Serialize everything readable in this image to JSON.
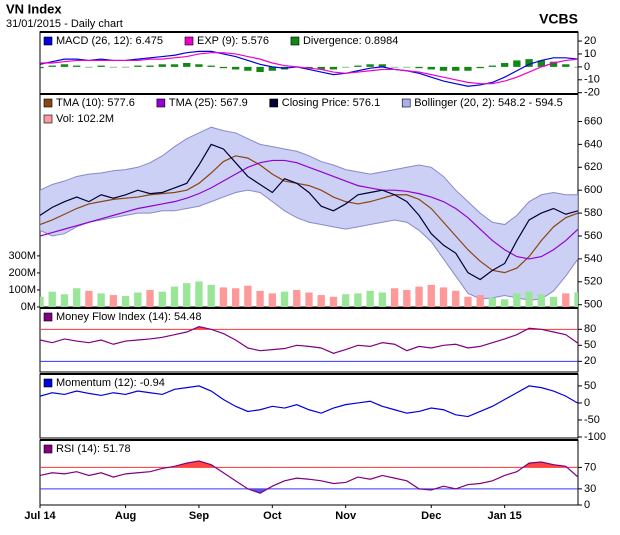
{
  "header": {
    "title": "VN Index",
    "date": "31/01/2015 - Daily chart",
    "brand": "VCBS"
  },
  "chart_data": [
    {
      "type": "line",
      "ylim": [
        -21,
        27
      ],
      "yticks": [
        20,
        10,
        0,
        -10,
        -20
      ],
      "series": [
        {
          "name": "MACD (26, 12): 6.475",
          "type": "line",
          "color": "#0000dd",
          "values": [
            2,
            4,
            6,
            6,
            5,
            6,
            5,
            5,
            6,
            7,
            8,
            9,
            11,
            12,
            12,
            10,
            8,
            5,
            2,
            0,
            -1,
            0,
            -2,
            -4,
            -6,
            -5,
            -3,
            -1,
            0,
            -2,
            -3,
            -5,
            -8,
            -11,
            -13,
            -15,
            -14,
            -12,
            -8,
            -3,
            2,
            5,
            7,
            7,
            6
          ]
        },
        {
          "name": "EXP (9): 5.576",
          "type": "line",
          "color": "#ee00cc",
          "values": [
            3,
            3,
            4,
            5,
            5,
            5,
            5,
            5,
            5,
            6,
            6,
            7,
            8,
            10,
            11,
            11,
            10,
            8,
            6,
            3,
            1,
            0,
            -1,
            -2,
            -4,
            -5,
            -4,
            -3,
            -2,
            -2,
            -3,
            -4,
            -6,
            -8,
            -10,
            -12,
            -13,
            -13,
            -11,
            -8,
            -4,
            0,
            3,
            5,
            6
          ]
        },
        {
          "name": "Divergence: 0.8984",
          "type": "bar",
          "color": "#118811",
          "values": [
            -1,
            1,
            2,
            1,
            0,
            1,
            0,
            0,
            1,
            1,
            2,
            2,
            3,
            2,
            1,
            -1,
            -2,
            -3,
            -4,
            -3,
            -2,
            0,
            -1,
            -2,
            -2,
            0,
            1,
            2,
            2,
            0,
            0,
            -1,
            -2,
            -3,
            -3,
            -3,
            -1,
            1,
            3,
            5,
            6,
            5,
            4,
            2,
            0
          ]
        }
      ]
    },
    {
      "type": "line",
      "ylim": [
        498,
        684
      ],
      "yticks": [
        660,
        640,
        620,
        600,
        580,
        560,
        540,
        520,
        500
      ],
      "y2lim": [
        0,
        1250
      ],
      "y2ticks": [
        {
          "value": 300,
          "label": "300M"
        },
        {
          "value": 200,
          "label": "200M"
        },
        {
          "value": 100,
          "label": "100M"
        },
        {
          "value": 0,
          "label": "0M"
        }
      ],
      "series": [
        {
          "name": "TMA (10): 577.6",
          "type": "line",
          "color": "#8b4513",
          "values": [
            570,
            574,
            579,
            584,
            588,
            590,
            592,
            593,
            594,
            596,
            597,
            598,
            600,
            606,
            615,
            625,
            630,
            628,
            622,
            614,
            608,
            606,
            604,
            600,
            594,
            590,
            588,
            590,
            593,
            596,
            596,
            592,
            584,
            572,
            560,
            548,
            538,
            530,
            528,
            532,
            542,
            556,
            568,
            576,
            580
          ]
        },
        {
          "name": "TMA (25): 567.9",
          "type": "line",
          "color": "#9400d3",
          "values": [
            560,
            563,
            566,
            569,
            572,
            575,
            578,
            581,
            584,
            586,
            588,
            590,
            593,
            597,
            602,
            608,
            614,
            620,
            624,
            626,
            626,
            624,
            620,
            616,
            612,
            608,
            604,
            602,
            600,
            600,
            599,
            597,
            594,
            590,
            584,
            576,
            566,
            556,
            548,
            542,
            540,
            542,
            548,
            556,
            566
          ]
        },
        {
          "name": "Closing Price: 576.1",
          "type": "line",
          "color": "#000033",
          "values": [
            578,
            585,
            590,
            594,
            590,
            596,
            593,
            596,
            600,
            597,
            598,
            602,
            606,
            622,
            640,
            636,
            624,
            612,
            605,
            598,
            610,
            606,
            598,
            586,
            582,
            588,
            596,
            598,
            600,
            596,
            590,
            578,
            562,
            552,
            545,
            528,
            522,
            530,
            536,
            556,
            574,
            580,
            584,
            579,
            582
          ]
        },
        {
          "name": "Bollinger (20, 2): 548.2 - 594.5",
          "type": "band",
          "color": "#aab0ee",
          "upper": [
            600,
            605,
            608,
            612,
            614,
            615,
            617,
            618,
            620,
            624,
            630,
            638,
            645,
            650,
            655,
            652,
            650,
            645,
            640,
            638,
            636,
            634,
            630,
            625,
            622,
            618,
            616,
            614,
            616,
            618,
            620,
            622,
            620,
            612,
            600,
            590,
            580,
            572,
            570,
            578,
            590,
            596,
            598,
            596,
            596
          ],
          "lower": [
            565,
            560,
            562,
            568,
            572,
            574,
            576,
            578,
            580,
            580,
            582,
            582,
            584,
            586,
            590,
            594,
            598,
            600,
            598,
            590,
            582,
            576,
            572,
            570,
            568,
            566,
            568,
            570,
            572,
            574,
            572,
            565,
            555,
            540,
            525,
            510,
            505,
            506,
            508,
            506,
            504,
            505,
            512,
            525,
            540
          ]
        },
        {
          "name": "Vol: 102.2M",
          "type": "bar",
          "axis": "y2",
          "color": "#ff9999",
          "values": [
            60,
            90,
            75,
            110,
            95,
            80,
            70,
            65,
            85,
            100,
            90,
            120,
            140,
            150,
            130,
            115,
            110,
            125,
            95,
            80,
            90,
            100,
            85,
            70,
            60,
            75,
            80,
            95,
            85,
            110,
            100,
            120,
            130,
            115,
            95,
            60,
            70,
            55,
            45,
            80,
            90,
            75,
            60,
            80,
            85
          ],
          "colors": [
            "#99e699",
            "#99e699",
            "#99e699",
            "#99e699",
            "#ff9999",
            "#99e699",
            "#ff9999",
            "#99e699",
            "#99e699",
            "#ff9999",
            "#99e699",
            "#99e699",
            "#99e699",
            "#99e699",
            "#99e699",
            "#ff9999",
            "#ff9999",
            "#ff9999",
            "#ff9999",
            "#ff9999",
            "#99e699",
            "#ff9999",
            "#ff9999",
            "#ff9999",
            "#ff9999",
            "#99e699",
            "#99e699",
            "#99e699",
            "#99e699",
            "#ff9999",
            "#ff9999",
            "#ff9999",
            "#ff9999",
            "#ff9999",
            "#ff9999",
            "#ff9999",
            "#ff9999",
            "#99e699",
            "#99e699",
            "#99e699",
            "#99e699",
            "#99e699",
            "#99e699",
            "#ff9999",
            "#99e699"
          ]
        }
      ]
    },
    {
      "type": "line",
      "ylim": [
        0,
        120
      ],
      "yticks": [
        80,
        50,
        20
      ],
      "grid_colors": [
        "#ff3333",
        null,
        "#3333ff"
      ],
      "fill_above_color": "#ff4444",
      "series": [
        {
          "name": "Money Flow Index (14): 54.48",
          "type": "line",
          "color": "#800080",
          "values": [
            60,
            55,
            62,
            58,
            55,
            60,
            52,
            58,
            60,
            62,
            65,
            70,
            75,
            85,
            80,
            72,
            60,
            45,
            40,
            42,
            44,
            50,
            48,
            45,
            35,
            42,
            50,
            48,
            55,
            52,
            40,
            48,
            45,
            50,
            52,
            45,
            48,
            55,
            62,
            70,
            82,
            80,
            75,
            70,
            54
          ]
        }
      ]
    },
    {
      "type": "line",
      "ylim": [
        -103,
        85
      ],
      "yticks": [
        50,
        0,
        -50,
        -100
      ],
      "series": [
        {
          "name": "Momentum (12): -0.94",
          "type": "line",
          "color": "#0000dd",
          "values": [
            20,
            30,
            25,
            35,
            28,
            22,
            30,
            25,
            35,
            30,
            25,
            40,
            45,
            50,
            35,
            10,
            -10,
            -25,
            -20,
            -10,
            -15,
            -5,
            -20,
            -30,
            -15,
            -5,
            0,
            5,
            -10,
            -20,
            -30,
            -25,
            -15,
            -20,
            -35,
            -40,
            -25,
            -10,
            10,
            30,
            50,
            45,
            35,
            20,
            -1
          ]
        }
      ]
    },
    {
      "type": "line",
      "ylim": [
        0,
        121
      ],
      "yticks": [
        70,
        30,
        0
      ],
      "grid_colors": [
        "#ff3333",
        "#3333ff",
        null
      ],
      "fill_above_color": "#ff4444",
      "fill_below_color": "#5555ee",
      "categories": [
        "Jul 14",
        null,
        null,
        null,
        null,
        null,
        null,
        "Aug",
        null,
        null,
        null,
        null,
        null,
        "Sep",
        null,
        null,
        null,
        null,
        null,
        "Oct",
        null,
        null,
        null,
        null,
        null,
        "Nov",
        null,
        null,
        null,
        null,
        null,
        null,
        "Dec",
        null,
        null,
        null,
        null,
        null,
        "Jan 15",
        null,
        null,
        null,
        null,
        null,
        null
      ],
      "series": [
        {
          "name": "RSI (14): 51.78",
          "type": "line",
          "color": "#800080",
          "values": [
            55,
            60,
            58,
            62,
            55,
            60,
            52,
            58,
            60,
            62,
            68,
            72,
            78,
            82,
            75,
            60,
            45,
            30,
            22,
            35,
            45,
            50,
            48,
            45,
            40,
            42,
            52,
            48,
            55,
            50,
            45,
            30,
            28,
            35,
            30,
            38,
            40,
            45,
            55,
            62,
            78,
            80,
            75,
            72,
            52
          ]
        }
      ]
    }
  ]
}
